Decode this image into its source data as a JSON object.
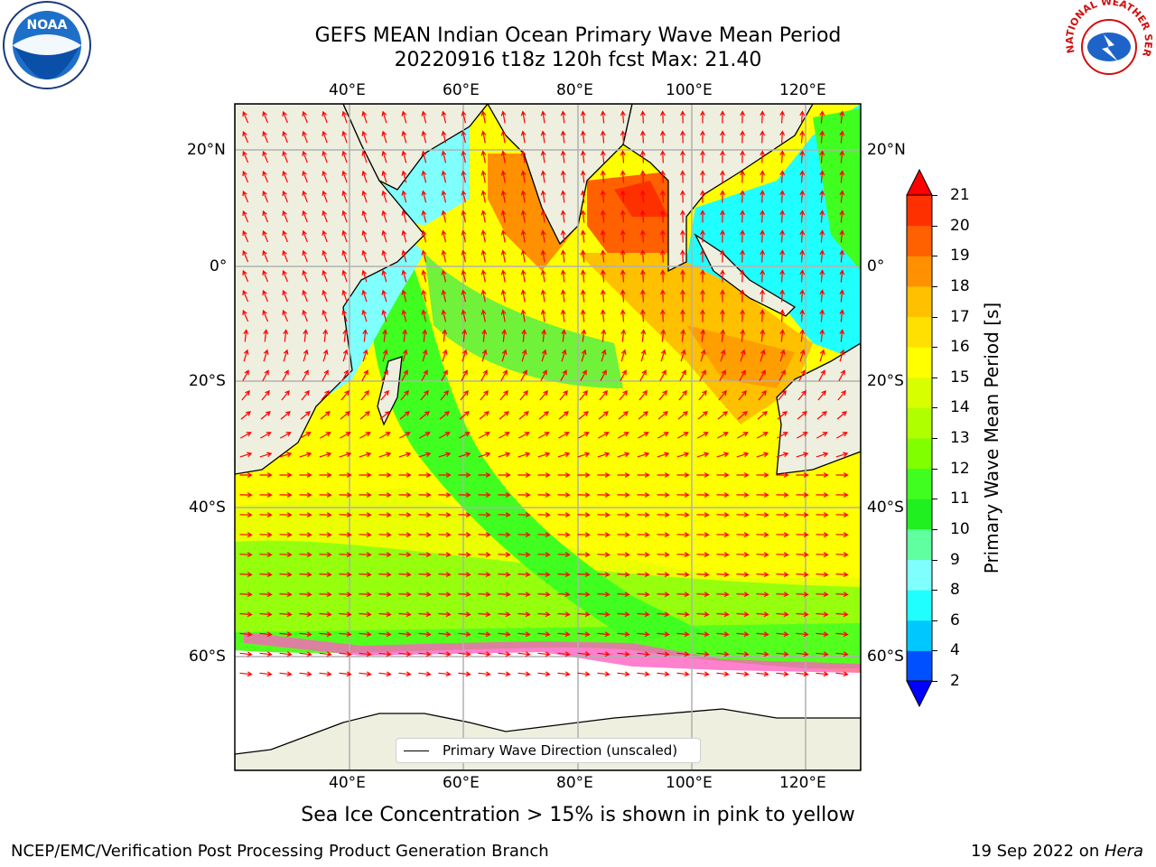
{
  "header": {
    "title_line1": "GEFS MEAN Indian Ocean Primary Wave Mean Period",
    "title_line2": "20220916 t18z 120h fcst   Max: 21.40"
  },
  "logos": {
    "left": "noaa-logo",
    "left_text": "NOAA",
    "right": "nws-logo",
    "right_text": "NATIONAL WEATHER SERVICE"
  },
  "map": {
    "lon_labels_top": [
      "40°E",
      "60°E",
      "80°E",
      "100°E",
      "120°E"
    ],
    "lon_labels_bottom": [
      "40°E",
      "60°E",
      "80°E",
      "100°E",
      "120°E"
    ],
    "lat_labels": [
      "20°N",
      "0°",
      "20°S",
      "40°S",
      "60°S"
    ],
    "legend_label": "Primary Wave Direction (unscaled)",
    "colors": {
      "land": "#efefdf",
      "arrow": "#ff0000",
      "grid": "#b0b0b0"
    }
  },
  "colorbar": {
    "label": "Primary Wave Mean Period [s]",
    "ticks": [
      "2",
      "4",
      "6",
      "8",
      "9",
      "10",
      "11",
      "12",
      "13",
      "14",
      "15",
      "16",
      "17",
      "18",
      "19",
      "20",
      "21"
    ],
    "colors": [
      "#0050ff",
      "#00c8ff",
      "#20ffff",
      "#80ffff",
      "#60ffa0",
      "#20f020",
      "#40ff20",
      "#80ff00",
      "#b0ff00",
      "#d8ff00",
      "#ffff00",
      "#ffe000",
      "#ffc000",
      "#ff9000",
      "#ff6000",
      "#ff3000",
      "#e00000"
    ],
    "under_color": "#0000ff",
    "over_color": "#ff0000"
  },
  "caption": "Sea Ice Concentration > 15% is shown in pink to yellow",
  "footer": {
    "left": "NCEP/EMC/Verification Post Processing Product Generation Branch",
    "right_date": "19 Sep 2022 on ",
    "right_host": "Hera"
  }
}
